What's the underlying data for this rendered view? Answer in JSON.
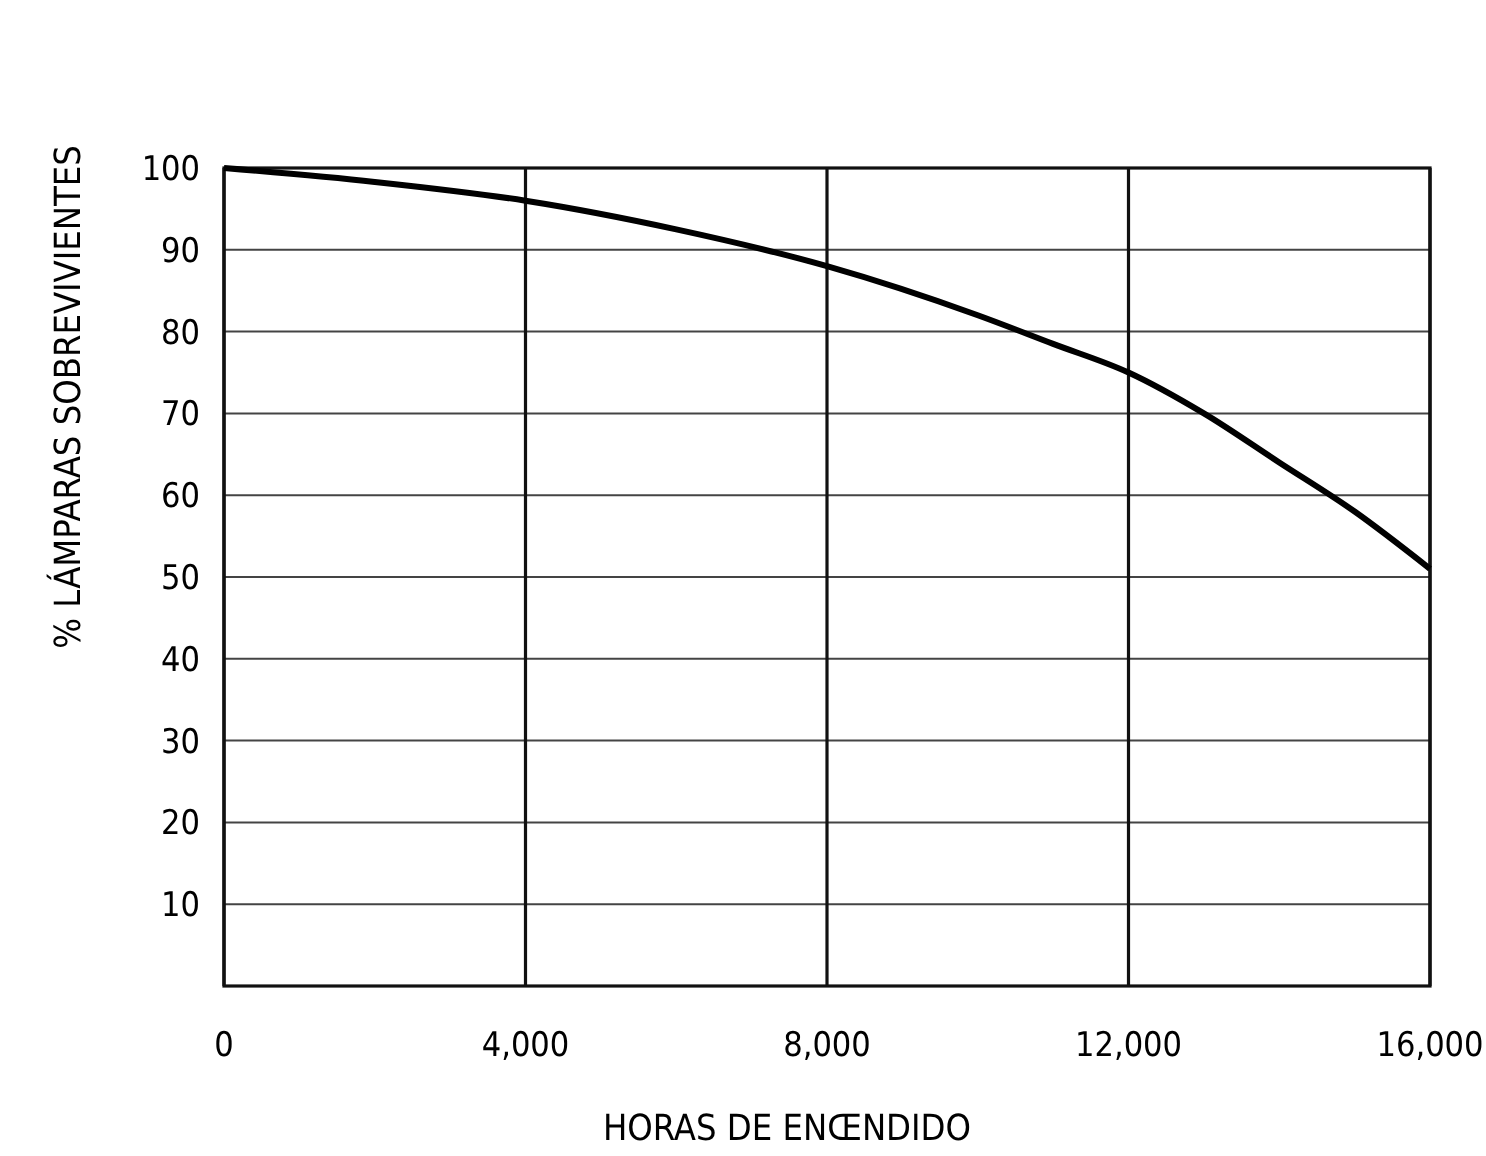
{
  "chart_data": {
    "type": "line",
    "xlabel": "HORAS DE ENŒNDIDO",
    "ylabel": "% LÁMPARAS SOBREVIVIENTES",
    "x": [
      0,
      2000,
      4000,
      6000,
      8000,
      10000,
      11000,
      12000,
      13000,
      14000,
      15000,
      16000
    ],
    "series": [
      {
        "color": "#000000",
        "values": [
          100,
          98.3,
          96,
          92.5,
          88,
          82,
          78.5,
          75,
          70,
          64,
          58,
          51
        ]
      }
    ],
    "xlim": [
      0,
      16000
    ],
    "ylim": [
      0,
      100
    ],
    "xticks": [
      0,
      {
        "value": 4000,
        "label": "4,000"
      },
      {
        "value": 8000,
        "label": "8,000"
      },
      {
        "value": 12000,
        "label": "12,000"
      },
      {
        "value": 16000,
        "label": "16,000"
      }
    ],
    "yticks": [
      10,
      20,
      30,
      40,
      50,
      60,
      70,
      80,
      90,
      100
    ],
    "grid": true,
    "marker": "none",
    "line_style": "solid"
  }
}
